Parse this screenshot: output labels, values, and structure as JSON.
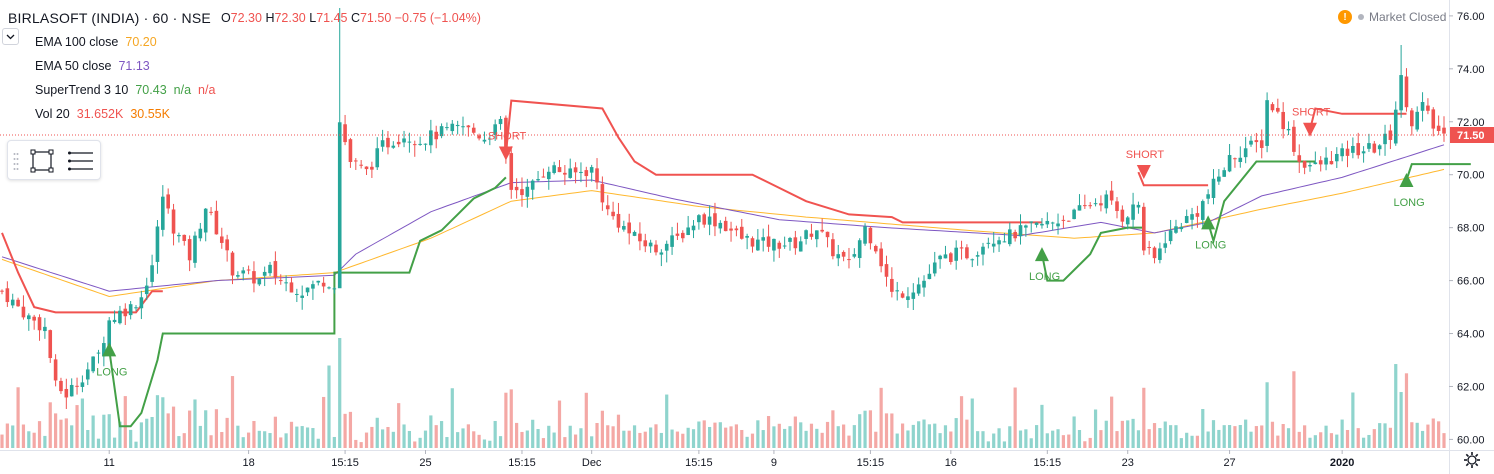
{
  "header": {
    "symbol": "BIRLASOFT (INDIA) · 60 · NSE",
    "ohlc": [
      {
        "label": "O",
        "value": "72.30"
      },
      {
        "label": "H",
        "value": "72.30"
      },
      {
        "label": "L",
        "value": "71.45"
      },
      {
        "label": "C",
        "value": "71.50"
      }
    ],
    "change": "−0.75 (−1.04%)"
  },
  "indicators": {
    "ema100": {
      "label": "EMA 100 close",
      "value": "70.20"
    },
    "ema50": {
      "label": "EMA 50 close",
      "value": "71.13"
    },
    "supertrend": {
      "label": "SuperTrend 3 10",
      "value": "70.43",
      "na1": "n/a",
      "na2": "n/a"
    },
    "vol": {
      "label": "Vol 20",
      "value1": "31.652K",
      "value2": "30.55K"
    }
  },
  "status": {
    "badge": "!",
    "text": "Market Closed"
  },
  "icons": {
    "collapse": "chevron-down-icon",
    "drawing_tool": "rectangle-select-icon",
    "layers": "lines-menu-icon",
    "settings": "gear-icon"
  },
  "colors": {
    "up": "#26a69a",
    "down": "#ef5350",
    "ema100": "#ffb82e",
    "ema50": "#7e57c2",
    "supertrend_up": "#43a047",
    "supertrend_down": "#f05350",
    "last_price": "#ef5350",
    "vol_up": "#8fd4cd",
    "vol_down": "#f4a8a5"
  },
  "chart_data": {
    "type": "candlestick",
    "price_axis": {
      "range": [
        59.6,
        76.6
      ],
      "ticks": [
        "76.00",
        "74.00",
        "72.00",
        "70.00",
        "68.00",
        "66.00",
        "64.00",
        "62.00",
        "60.00"
      ]
    },
    "last_price_label": "71.50",
    "time_ticks": [
      "11",
      "18",
      "15:15",
      "25",
      "15:15",
      "Dec",
      "15:15",
      "9",
      "15:15",
      "16",
      "15:15",
      "23",
      "27",
      "2020"
    ],
    "annotations": [
      {
        "text": "LONG",
        "type": "long",
        "price": 63.4
      },
      {
        "text": "SHORT",
        "type": "short",
        "price": 70.8
      },
      {
        "text": "LONG",
        "type": "long",
        "price": 67.0
      },
      {
        "text": "SHORT",
        "type": "short",
        "price": 70.1
      },
      {
        "text": "LONG",
        "type": "long",
        "price": 68.2
      },
      {
        "text": "SHORT",
        "type": "short",
        "price": 71.7
      },
      {
        "text": "LONG",
        "type": "long",
        "price": 69.8
      }
    ],
    "candle_count": 270,
    "anchors": [
      [
        0,
        65.6
      ],
      [
        5,
        64.6
      ],
      [
        8,
        64.2
      ],
      [
        10,
        62.0
      ],
      [
        12,
        61.7
      ],
      [
        15,
        62.4
      ],
      [
        18,
        63.2
      ],
      [
        20,
        64.5
      ],
      [
        22,
        64.8
      ],
      [
        24,
        65.0
      ],
      [
        26,
        65.4
      ],
      [
        28,
        66.6
      ],
      [
        30,
        69.2
      ],
      [
        32,
        68.0
      ],
      [
        35,
        66.9
      ],
      [
        38,
        68.8
      ],
      [
        41,
        67.5
      ],
      [
        43,
        66.4
      ],
      [
        48,
        66.0
      ],
      [
        50,
        66.4
      ],
      [
        52,
        66.0
      ],
      [
        56,
        65.6
      ],
      [
        60,
        66.0
      ],
      [
        62,
        65.9
      ],
      [
        63,
        72.0
      ],
      [
        65,
        70.5
      ],
      [
        68,
        70.1
      ],
      [
        71,
        71.1
      ],
      [
        75,
        71.5
      ],
      [
        78,
        71.3
      ],
      [
        82,
        71.6
      ],
      [
        86,
        71.8
      ],
      [
        90,
        71.4
      ],
      [
        93,
        71.9
      ],
      [
        95,
        69.5
      ],
      [
        98,
        69.4
      ],
      [
        102,
        70.3
      ],
      [
        106,
        70.0
      ],
      [
        110,
        70.2
      ],
      [
        113,
        68.6
      ],
      [
        118,
        67.6
      ],
      [
        122,
        67.2
      ],
      [
        126,
        67.6
      ],
      [
        130,
        68.4
      ],
      [
        134,
        68.2
      ],
      [
        138,
        67.6
      ],
      [
        142,
        67.4
      ],
      [
        148,
        67.4
      ],
      [
        152,
        68.0
      ],
      [
        155,
        67.1
      ],
      [
        158,
        66.6
      ],
      [
        161,
        68.0
      ],
      [
        163,
        67.3
      ],
      [
        166,
        65.5
      ],
      [
        169,
        65.6
      ],
      [
        172,
        66.0
      ],
      [
        175,
        66.8
      ],
      [
        178,
        67.0
      ],
      [
        181,
        67.0
      ],
      [
        184,
        67.6
      ],
      [
        188,
        67.7
      ],
      [
        192,
        68.0
      ],
      [
        196,
        68.2
      ],
      [
        200,
        68.5
      ],
      [
        203,
        68.9
      ],
      [
        206,
        69.1
      ],
      [
        209,
        68.4
      ],
      [
        212,
        68.9
      ],
      [
        213,
        67.2
      ],
      [
        215,
        66.8
      ],
      [
        217,
        67.6
      ],
      [
        220,
        68.2
      ],
      [
        223,
        68.6
      ],
      [
        226,
        69.6
      ],
      [
        229,
        70.6
      ],
      [
        232,
        71.0
      ],
      [
        235,
        71.2
      ],
      [
        236,
        72.8
      ],
      [
        238,
        72.3
      ],
      [
        240,
        71.6
      ],
      [
        242,
        70.5
      ],
      [
        245,
        70.3
      ],
      [
        248,
        70.6
      ],
      [
        252,
        70.9
      ],
      [
        256,
        71.0
      ],
      [
        259,
        71.5
      ],
      [
        261,
        73.6
      ],
      [
        263,
        72.0
      ],
      [
        265,
        72.6
      ],
      [
        267,
        71.8
      ],
      [
        269,
        71.5
      ]
    ],
    "ema50_anchors": [
      [
        0,
        66.9
      ],
      [
        20,
        65.6
      ],
      [
        40,
        66.0
      ],
      [
        62,
        66.2
      ],
      [
        66,
        67.0
      ],
      [
        80,
        68.6
      ],
      [
        95,
        69.7
      ],
      [
        110,
        69.8
      ],
      [
        125,
        69.1
      ],
      [
        145,
        68.3
      ],
      [
        165,
        68.0
      ],
      [
        190,
        67.7
      ],
      [
        205,
        68.2
      ],
      [
        215,
        67.8
      ],
      [
        225,
        68.2
      ],
      [
        235,
        69.2
      ],
      [
        250,
        69.9
      ],
      [
        269,
        71.13
      ]
    ],
    "ema100_anchors": [
      [
        0,
        66.8
      ],
      [
        20,
        65.4
      ],
      [
        40,
        66.0
      ],
      [
        62,
        66.3
      ],
      [
        80,
        67.6
      ],
      [
        95,
        69.0
      ],
      [
        110,
        69.4
      ],
      [
        130,
        68.8
      ],
      [
        150,
        68.4
      ],
      [
        180,
        67.9
      ],
      [
        200,
        67.6
      ],
      [
        215,
        67.8
      ],
      [
        235,
        68.7
      ],
      [
        250,
        69.3
      ],
      [
        269,
        70.2
      ]
    ],
    "supertrend_segments": [
      {
        "direction": "down",
        "points": [
          [
            0,
            67.8
          ],
          [
            3,
            66.3
          ],
          [
            6,
            65.0
          ],
          [
            10,
            64.8
          ],
          [
            25,
            64.8
          ],
          [
            28,
            65.6
          ],
          [
            30,
            65.6
          ]
        ]
      },
      {
        "direction": "up",
        "points": [
          [
            20,
            63.4
          ],
          [
            22,
            60.5
          ],
          [
            24,
            60.5
          ],
          [
            26,
            61.0
          ],
          [
            29,
            63.0
          ],
          [
            30,
            64.0
          ],
          [
            60,
            64.0
          ],
          [
            62,
            64.0
          ],
          [
            62,
            66.3
          ],
          [
            76,
            66.3
          ],
          [
            78,
            67.5
          ],
          [
            82,
            67.9
          ],
          [
            85,
            68.5
          ],
          [
            88,
            69.1
          ],
          [
            92,
            69.5
          ],
          [
            94,
            69.9
          ]
        ]
      },
      {
        "direction": "down",
        "points": [
          [
            94,
            70.8
          ],
          [
            95,
            72.8
          ],
          [
            112,
            72.5
          ],
          [
            115,
            71.4
          ],
          [
            118,
            70.5
          ],
          [
            122,
            70.0
          ],
          [
            140,
            70.0
          ],
          [
            143,
            69.7
          ],
          [
            150,
            69.0
          ],
          [
            158,
            68.5
          ],
          [
            166,
            68.4
          ],
          [
            168,
            68.2
          ],
          [
            194,
            68.2
          ]
        ]
      },
      {
        "direction": "up",
        "points": [
          [
            194,
            67.0
          ],
          [
            195,
            66.0
          ],
          [
            198,
            66.0
          ],
          [
            203,
            67.0
          ],
          [
            205,
            67.8
          ],
          [
            210,
            68.0
          ],
          [
            213,
            68.0
          ]
        ]
      },
      {
        "direction": "down",
        "points": [
          [
            212,
            70.1
          ],
          [
            213,
            69.6
          ],
          [
            225,
            69.6
          ]
        ]
      },
      {
        "direction": "up",
        "points": [
          [
            225,
            68.2
          ],
          [
            226,
            67.5
          ],
          [
            228,
            69.0
          ],
          [
            232,
            70.0
          ],
          [
            234,
            70.5
          ],
          [
            245,
            70.5
          ]
        ]
      },
      {
        "direction": "down",
        "points": [
          [
            244,
            71.7
          ],
          [
            245,
            72.5
          ],
          [
            250,
            72.3
          ],
          [
            262,
            72.3
          ]
        ]
      },
      {
        "direction": "up",
        "points": [
          [
            262,
            69.8
          ],
          [
            263,
            70.4
          ],
          [
            274,
            70.4
          ]
        ]
      }
    ]
  }
}
